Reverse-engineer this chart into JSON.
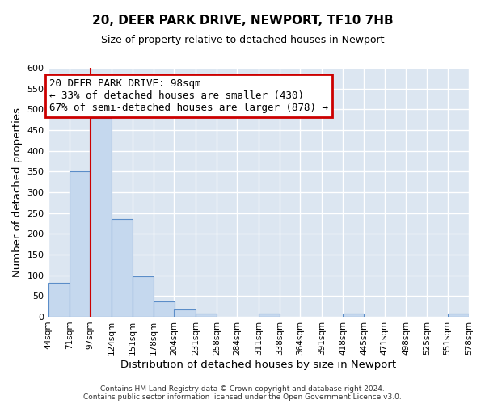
{
  "title": "20, DEER PARK DRIVE, NEWPORT, TF10 7HB",
  "subtitle": "Size of property relative to detached houses in Newport",
  "xlabel": "Distribution of detached houses by size in Newport",
  "ylabel": "Number of detached properties",
  "bin_edges": [
    44,
    71,
    97,
    124,
    151,
    178,
    204,
    231,
    258,
    284,
    311,
    338,
    364,
    391,
    418,
    445,
    471,
    498,
    525,
    551,
    578
  ],
  "bin_labels": [
    "44sqm",
    "71sqm",
    "97sqm",
    "124sqm",
    "151sqm",
    "178sqm",
    "204sqm",
    "231sqm",
    "258sqm",
    "284sqm",
    "311sqm",
    "338sqm",
    "364sqm",
    "391sqm",
    "418sqm",
    "445sqm",
    "471sqm",
    "498sqm",
    "525sqm",
    "551sqm",
    "578sqm"
  ],
  "bar_heights": [
    82,
    350,
    480,
    235,
    97,
    36,
    18,
    7,
    0,
    0,
    7,
    0,
    0,
    0,
    7,
    0,
    0,
    0,
    0,
    7
  ],
  "bar_color": "#c5d8ee",
  "bar_edge_color": "#5b8dc8",
  "marker_value": 98,
  "marker_color": "#cc0000",
  "ylim": [
    0,
    600
  ],
  "yticks": [
    0,
    50,
    100,
    150,
    200,
    250,
    300,
    350,
    400,
    450,
    500,
    550,
    600
  ],
  "annotation_title": "20 DEER PARK DRIVE: 98sqm",
  "annotation_line1": "← 33% of detached houses are smaller (430)",
  "annotation_line2": "67% of semi-detached houses are larger (878) →",
  "annotation_box_color": "#ffffff",
  "annotation_box_edge_color": "#cc0000",
  "footer1": "Contains HM Land Registry data © Crown copyright and database right 2024.",
  "footer2": "Contains public sector information licensed under the Open Government Licence v3.0.",
  "fig_background_color": "#ffffff",
  "plot_background_color": "#dce6f1",
  "grid_color": "#ffffff",
  "title_fontsize": 11,
  "subtitle_fontsize": 9,
  "annotation_fontsize": 9
}
